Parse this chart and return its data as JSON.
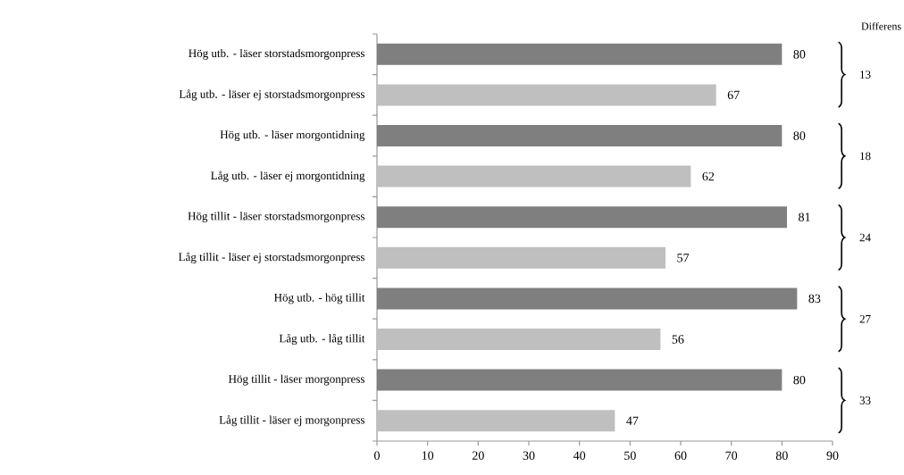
{
  "chart_data": {
    "type": "bar",
    "orientation": "horizontal",
    "categories": [
      "Hög utb. - läser storstadsmorgonpress",
      "Låg utb. - läser ej storstadsmorgonpress",
      "Hög utb. - läser morgontidning",
      "Låg utb. - läser ej morgontidning",
      "Hög tillit - läser storstadsmorgonpress",
      "Låg tillit - läser ej storstadsmorgonpress",
      "Hög utb. - hög tillit",
      "Låg utb. - låg tillit",
      "Hög tillit - läser morgonpress",
      "Låg tillit - läser ej morgonpress"
    ],
    "values": [
      80,
      67,
      80,
      62,
      81,
      57,
      83,
      56,
      80,
      47
    ],
    "colors": [
      "#7f7f7f",
      "#bfbfbf",
      "#7f7f7f",
      "#bfbfbf",
      "#7f7f7f",
      "#bfbfbf",
      "#7f7f7f",
      "#bfbfbf",
      "#7f7f7f",
      "#bfbfbf"
    ],
    "xlim": [
      0,
      90
    ],
    "xticks": [
      0,
      10,
      20,
      30,
      40,
      50,
      60,
      70,
      80,
      90
    ],
    "data_labels": true,
    "grid": false,
    "annotations": [
      "Differens",
      "13",
      "18",
      "24",
      "27",
      "33"
    ]
  }
}
